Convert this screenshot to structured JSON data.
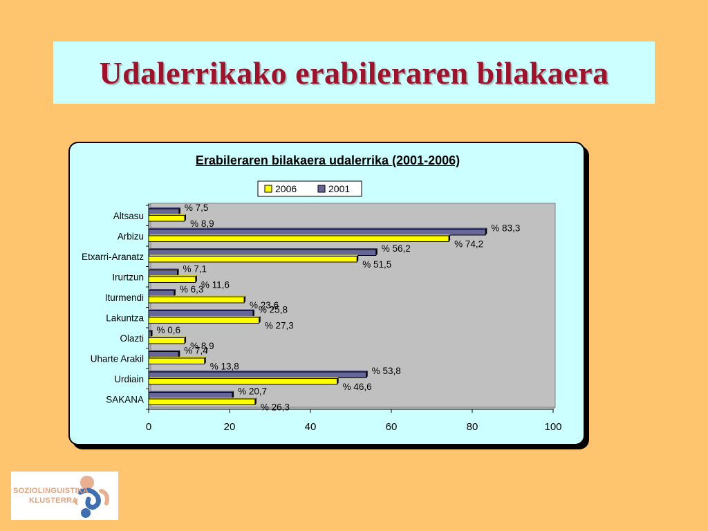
{
  "slide": {
    "title": "Udalerrikako erabileraren bilakaera",
    "colors": {
      "background": "#FFC46E",
      "title": "#A3102A",
      "panel": "#CCFFFF"
    }
  },
  "logo": {
    "line1": "SOZIOLINGUISTIKA",
    "line2": "KLUSTERRA",
    "icon": "kluster-logo-icon"
  },
  "chart_data": {
    "type": "bar",
    "orientation": "horizontal",
    "title": "Erabileraren bilakaera udalerrika (2001-2006)",
    "categories": [
      "Altsasu",
      "Arbizu",
      "Etxarri-Aranatz",
      "Irurtzun",
      "Iturmendi",
      "Lakuntza",
      "Olazti",
      "Uharte Arakil",
      "Urdiain",
      "SAKANA"
    ],
    "series": [
      {
        "name": "2006",
        "color": "#FFFF00",
        "values": [
          8.9,
          74.2,
          51.5,
          11.6,
          23.6,
          27.3,
          8.9,
          13.8,
          46.6,
          26.3
        ]
      },
      {
        "name": "2001",
        "color": "#666699",
        "values": [
          7.5,
          83.3,
          56.2,
          7.1,
          6.3,
          25.8,
          0.6,
          7.4,
          53.8,
          20.7
        ]
      }
    ],
    "data_labels": {
      "2006": [
        "% 8,9",
        "% 74,2",
        "% 51,5",
        "% 11,6",
        "% 23,6",
        "% 27,3",
        "% 8,9",
        "% 13,8",
        "% 46,6",
        "% 26,3"
      ],
      "2001": [
        "% 7,5",
        "% 83,3",
        "% 56,2",
        "% 7,1",
        "% 6,3",
        "% 25,8",
        "% 0,6",
        "% 7,4",
        "% 53,8",
        "% 20,7"
      ]
    },
    "xlim": [
      0,
      100
    ],
    "x_ticks": [
      "0",
      "20",
      "40",
      "60",
      "80",
      "100"
    ],
    "legend": [
      "2006",
      "2001"
    ],
    "legend_position": "top",
    "grid": false,
    "plot_background": "#C0C0C0"
  }
}
